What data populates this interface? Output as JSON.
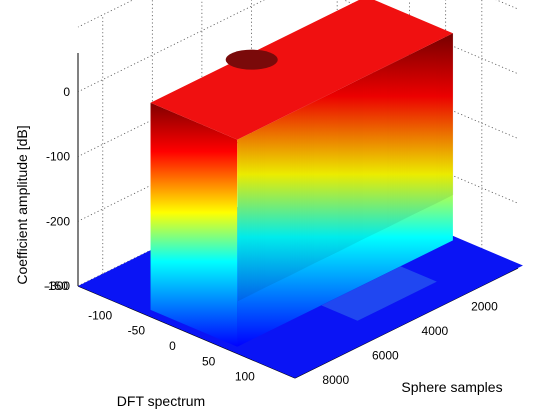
{
  "chart_data": {
    "type": "surface",
    "title": "",
    "xlabel": "Sphere samples",
    "ylabel": "DFT spectrum",
    "zlabel": "Coefficient amplitude [dB]",
    "xlim": [
      0,
      9000
    ],
    "ylim": [
      -150,
      150
    ],
    "zlim": [
      -300,
      80
    ],
    "x_ticks": [
      "2000",
      "4000",
      "6000",
      "8000"
    ],
    "y_ticks": [
      "-100",
      "-50",
      "0",
      "50",
      "100"
    ],
    "z_ticks": [
      "0",
      "-100",
      "-200",
      "-300"
    ],
    "y_extra_tick": "-150",
    "colormap": "jet",
    "grid": true,
    "surface": {
      "noise_floor_db": -300,
      "ridge": {
        "dft_range": [
          -60,
          60
        ],
        "sphere_samples_range": [
          0,
          8700
        ],
        "peak_db": 20,
        "skirt_floor_db": -230
      },
      "secondary_bump": {
        "sphere_samples": 4200,
        "dft_range": [
          70,
          120
        ],
        "level_db": -280
      }
    }
  }
}
